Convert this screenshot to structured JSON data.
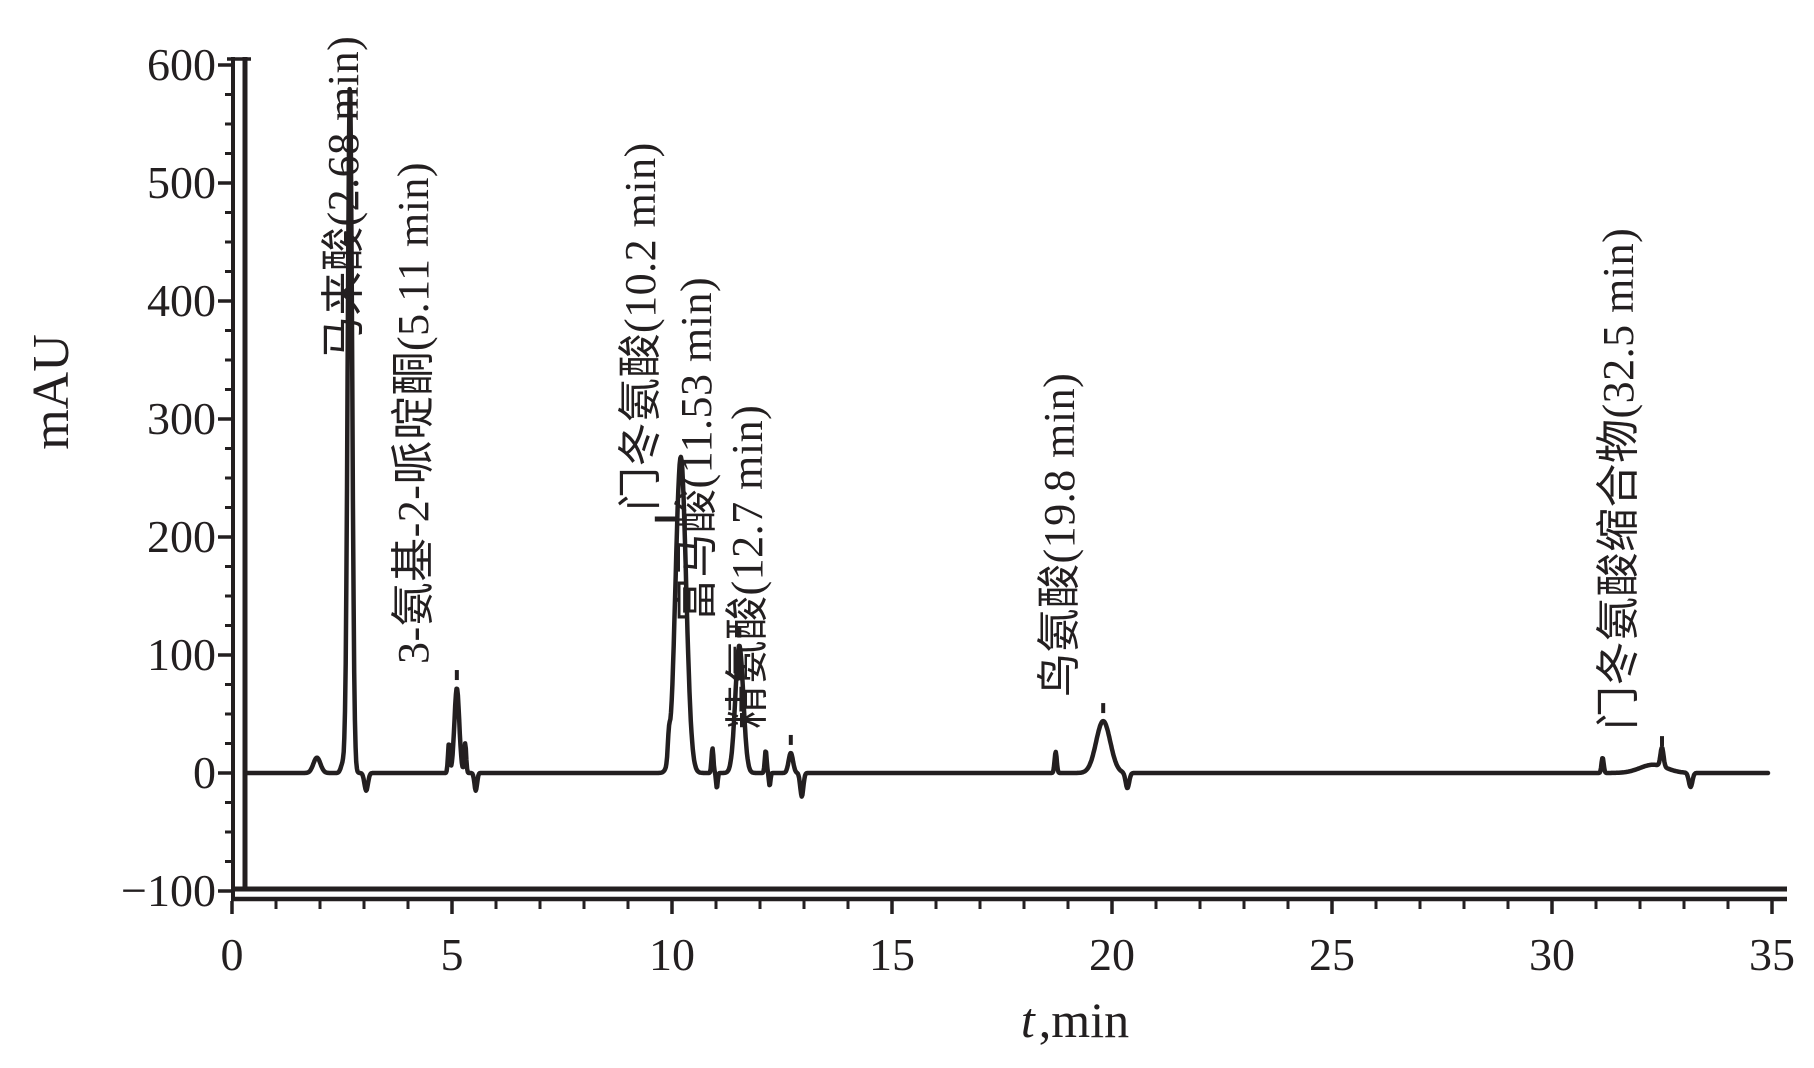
{
  "figure": {
    "ink_color": "#231f20",
    "background_color": "#ffffff"
  },
  "axis_labels": {
    "y": "mAU",
    "x_italic": "t",
    "x_rest": ",min"
  },
  "y_axis": {
    "tick_labels": [
      "600",
      "500",
      "400",
      "300",
      "200",
      "100",
      "0",
      "−100"
    ]
  },
  "x_axis": {
    "tick_labels": [
      "0",
      "5",
      "10",
      "15",
      "20",
      "25",
      "30",
      "35"
    ]
  },
  "chart_data": {
    "type": "line",
    "title": "",
    "xlabel": "t,min",
    "ylabel": "mAU",
    "xlim": [
      0,
      35
    ],
    "ylim": [
      -100,
      600
    ],
    "x_major_ticks": [
      0,
      5,
      10,
      15,
      20,
      25,
      30,
      35
    ],
    "x_minor_step_min": 1,
    "y_major_ticks": [
      -100,
      0,
      100,
      200,
      300,
      400,
      500,
      600
    ],
    "y_minor_step_mau": 25,
    "grid": false,
    "legend": "none",
    "baseline_mau": 0,
    "peaks": [
      {
        "id": "maleic-acid",
        "label": "马来酸(2.68 min)",
        "rt_min": 2.68,
        "height_mau": 585,
        "sigma_min": 0.05,
        "label_anchor_mau": 350,
        "label_dx_min": 0.95,
        "leader": "none"
      },
      {
        "id": "3-amino-2-piperidone",
        "label": "3-氨基-2-哌啶酮(5.11 min)",
        "rt_min": 5.11,
        "height_mau": 72,
        "sigma_min": 0.055,
        "label_anchor_mau": null,
        "label_dx_min": 0.12,
        "leader": "tick"
      },
      {
        "id": "aspartic-acid",
        "label": "门冬氨酸(10.2 min)",
        "rt_min": 10.2,
        "height_mau": 268,
        "sigma_min": 0.12,
        "label_anchor_mau": 222,
        "label_dx_min": 0.18,
        "leader": "hdash"
      },
      {
        "id": "fumaric-acid",
        "label": "富马酸(11.53 min)",
        "rt_min": 11.53,
        "height_mau": 108,
        "sigma_min": 0.09,
        "label_anchor_mau": null,
        "label_dx_min": 0.12,
        "leader": "tick"
      },
      {
        "id": "arginine",
        "label": "精氨酸(12.7 min)",
        "rt_min": 12.7,
        "height_mau": 17,
        "sigma_min": 0.05,
        "label_anchor_mau": null,
        "label_dx_min": 0.12,
        "leader": "tick"
      },
      {
        "id": "ornithine",
        "label": "鸟氨酸(19.8 min)",
        "rt_min": 19.8,
        "height_mau": 44,
        "sigma_min": 0.16,
        "label_anchor_mau": null,
        "label_dx_min": 0.12,
        "leader": "tick"
      },
      {
        "id": "aspartate-condensate",
        "label": "门冬氨酸缩合物(32.5 min)",
        "rt_min": 32.5,
        "height_mau": 16,
        "sigma_min": 0.035,
        "label_anchor_mau": null,
        "label_dx_min": 0.12,
        "leader": "tick"
      }
    ],
    "minor_features": [
      {
        "rt_min": 1.93,
        "height_mau": 13,
        "sigma_min": 0.08
      },
      {
        "rt_min": 2.52,
        "height_mau": 8,
        "sigma_min": 0.045
      },
      {
        "rt_min": 3.05,
        "height_mau": -15,
        "sigma_min": 0.04
      },
      {
        "rt_min": 4.93,
        "height_mau": 25,
        "sigma_min": 0.022
      },
      {
        "rt_min": 5.3,
        "height_mau": 25,
        "sigma_min": 0.022
      },
      {
        "rt_min": 5.54,
        "height_mau": -15,
        "sigma_min": 0.03
      },
      {
        "rt_min": 9.93,
        "height_mau": 18,
        "sigma_min": 0.025
      },
      {
        "rt_min": 10.92,
        "height_mau": 21,
        "sigma_min": 0.022
      },
      {
        "rt_min": 11.02,
        "height_mau": -13,
        "sigma_min": 0.018
      },
      {
        "rt_min": 12.13,
        "height_mau": 19,
        "sigma_min": 0.022
      },
      {
        "rt_min": 12.22,
        "height_mau": -11,
        "sigma_min": 0.018
      },
      {
        "rt_min": 12.95,
        "height_mau": -20,
        "sigma_min": 0.035
      },
      {
        "rt_min": 18.72,
        "height_mau": 18,
        "sigma_min": 0.025
      },
      {
        "rt_min": 20.35,
        "height_mau": -13,
        "sigma_min": 0.04
      },
      {
        "rt_min": 31.15,
        "height_mau": 13,
        "sigma_min": 0.025
      },
      {
        "rt_min": 32.3,
        "height_mau": 7,
        "sigma_min": 0.3
      },
      {
        "rt_min": 33.15,
        "height_mau": -12,
        "sigma_min": 0.04
      }
    ]
  }
}
